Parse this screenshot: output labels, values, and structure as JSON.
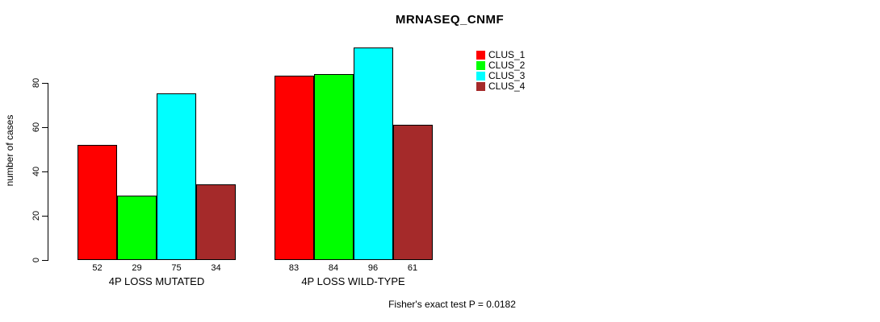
{
  "chart_data": {
    "type": "bar",
    "title": "MRNASEQ_CNMF",
    "ylabel": "number of cases",
    "xlabel": "",
    "yticks": [
      0,
      20,
      40,
      60,
      80
    ],
    "ylim": [
      0,
      96
    ],
    "grid": false,
    "legend_position": "top-right",
    "categories": [
      "4P LOSS MUTATED",
      "4P LOSS WILD-TYPE"
    ],
    "series": [
      {
        "name": "CLUS_1",
        "color": "#ff0000",
        "values": [
          52,
          83
        ]
      },
      {
        "name": "CLUS_2",
        "color": "#00ff00",
        "values": [
          29,
          84
        ]
      },
      {
        "name": "CLUS_3",
        "color": "#00ffff",
        "values": [
          75,
          96
        ]
      },
      {
        "name": "CLUS_4",
        "color": "#a52a2a",
        "values": [
          34,
          61
        ]
      }
    ],
    "bar_value_labels": [
      [
        52,
        29,
        75,
        34
      ],
      [
        83,
        84,
        96,
        61
      ]
    ],
    "annotation": "Fisher's exact test P = 0.0182"
  }
}
